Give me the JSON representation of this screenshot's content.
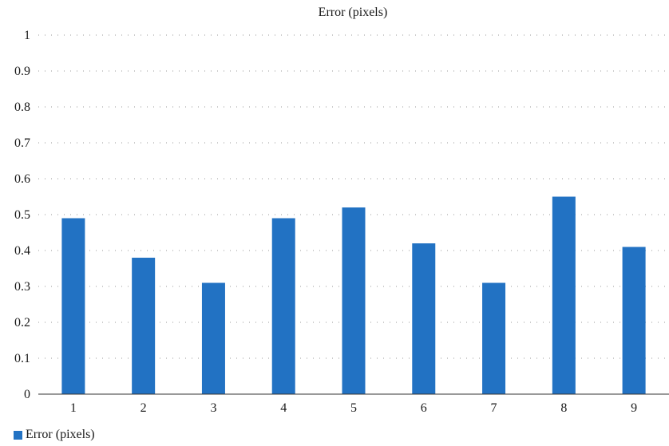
{
  "chart_data": {
    "type": "bar",
    "title": "Error (pixels)",
    "xlabel": "",
    "ylabel": "",
    "categories": [
      "1",
      "2",
      "3",
      "4",
      "5",
      "6",
      "7",
      "8",
      "9"
    ],
    "series": [
      {
        "name": "Error (pixels)",
        "values": [
          0.49,
          0.38,
          0.31,
          0.49,
          0.52,
          0.42,
          0.31,
          0.55,
          0.41
        ],
        "color": "#2272c3"
      }
    ],
    "ylim": [
      0,
      1
    ],
    "yticks": [
      "0",
      "0.1",
      "0.2",
      "0.3",
      "0.4",
      "0.5",
      "0.6",
      "0.7",
      "0.8",
      "0.9",
      "1"
    ],
    "grid": "horizontal-dotted",
    "legend": "bottom-left"
  }
}
